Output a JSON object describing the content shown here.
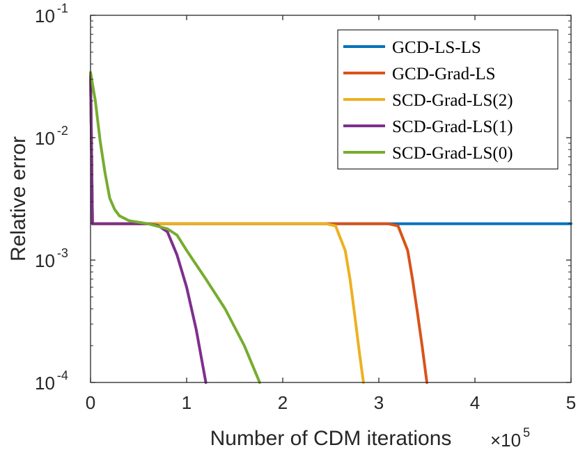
{
  "chart_data": {
    "type": "line",
    "title": "",
    "xlabel": "Number of CDM iterations",
    "ylabel": "Relative error",
    "x_multiplier": {
      "prefix": "×10",
      "exponent": "5"
    },
    "xlim": [
      0,
      5
    ],
    "ylim": [
      0.0001,
      0.1
    ],
    "yscale": "log",
    "x_ticks": [
      {
        "value": 0,
        "label": "0"
      },
      {
        "value": 1,
        "label": "1"
      },
      {
        "value": 2,
        "label": "2"
      },
      {
        "value": 3,
        "label": "3"
      },
      {
        "value": 4,
        "label": "4"
      },
      {
        "value": 5,
        "label": "5"
      }
    ],
    "y_ticks": [
      {
        "value": 0.1,
        "base": "10",
        "exp": "-1"
      },
      {
        "value": 0.01,
        "base": "10",
        "exp": "-2"
      },
      {
        "value": 0.001,
        "base": "10",
        "exp": "-3"
      },
      {
        "value": 0.0001,
        "base": "10",
        "exp": "-4"
      }
    ],
    "legend_position": "top-right",
    "series": [
      {
        "name": "GCD-LS-LS",
        "color": "#0072BD",
        "x": [
          0,
          0.02,
          5
        ],
        "y": [
          0.034,
          0.00198,
          0.00198
        ]
      },
      {
        "name": "GCD-Grad-LS",
        "color": "#D95319",
        "x": [
          0,
          0.02,
          3.1,
          3.2,
          3.3,
          3.35,
          3.4,
          3.45,
          3.5
        ],
        "y": [
          0.034,
          0.00198,
          0.00198,
          0.0019,
          0.0012,
          0.0007,
          0.00038,
          0.0002,
          0.0001
        ]
      },
      {
        "name": "SCD-Grad-LS(2)",
        "color": "#EDB120",
        "x": [
          0,
          0.02,
          2.45,
          2.55,
          2.65,
          2.7,
          2.75,
          2.8,
          2.84
        ],
        "y": [
          0.034,
          0.00198,
          0.00198,
          0.0019,
          0.0012,
          0.0007,
          0.00035,
          0.00017,
          0.0001
        ]
      },
      {
        "name": "SCD-Grad-LS(1)",
        "color": "#7E2F8E",
        "x": [
          0,
          0.02,
          0.6,
          0.7,
          0.8,
          0.9,
          1.0,
          1.1,
          1.2
        ],
        "y": [
          0.034,
          0.00198,
          0.00198,
          0.00192,
          0.0017,
          0.0011,
          0.0006,
          0.00027,
          0.0001
        ]
      },
      {
        "name": "SCD-Grad-LS(0)",
        "color": "#77AC30",
        "x": [
          0,
          0.05,
          0.1,
          0.15,
          0.2,
          0.25,
          0.3,
          0.4,
          0.6,
          0.8,
          0.9,
          1.0,
          1.2,
          1.4,
          1.6,
          1.76
        ],
        "y": [
          0.034,
          0.02,
          0.0094,
          0.0052,
          0.0032,
          0.0026,
          0.0023,
          0.0021,
          0.00198,
          0.0018,
          0.0016,
          0.0012,
          0.0007,
          0.0004,
          0.0002,
          0.0001
        ]
      }
    ]
  }
}
